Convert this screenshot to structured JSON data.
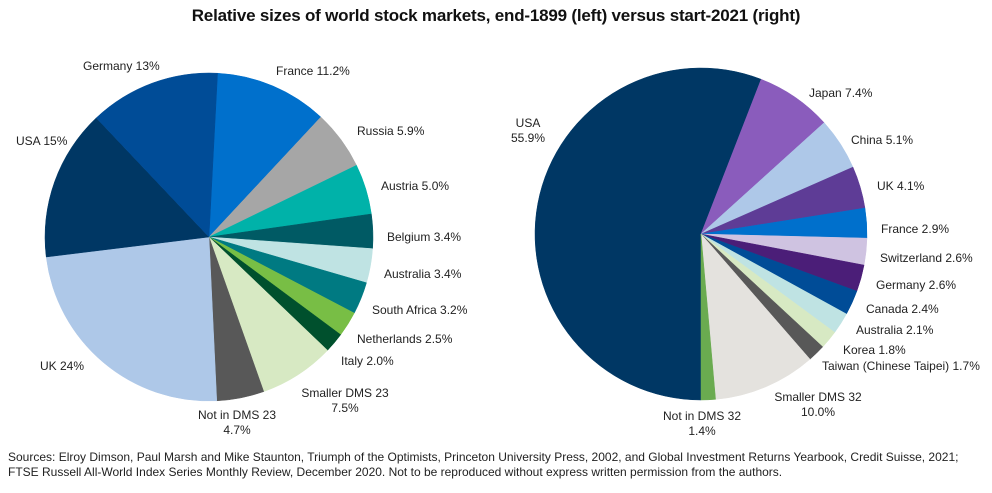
{
  "chart_data": [
    {
      "type": "pie",
      "title": "Relative sizes of world stock markets, end-1899 (left) versus start-2021 (right)",
      "name": "end-1899",
      "position": "left",
      "start_angle_deg_from_top": 3,
      "direction": "clockwise",
      "slices": [
        {
          "label": "France",
          "value": 11.2,
          "text": [
            "France 11.2%"
          ],
          "color": "#0070cc"
        },
        {
          "label": "Russia",
          "value": 5.9,
          "text": [
            "Russia 5.9%"
          ],
          "color": "#a6a6a6"
        },
        {
          "label": "Austria",
          "value": 5.0,
          "text": [
            "Austria 5.0%"
          ],
          "color": "#00b2a9"
        },
        {
          "label": "Belgium",
          "value": 3.4,
          "text": [
            "Belgium 3.4%"
          ],
          "color": "#005a64"
        },
        {
          "label": "Australia",
          "value": 3.4,
          "text": [
            "Australia 3.4%"
          ],
          "color": "#bfe3e3"
        },
        {
          "label": "South Africa",
          "value": 3.2,
          "text": [
            "South Africa 3.2%"
          ],
          "color": "#007a82"
        },
        {
          "label": "Netherlands",
          "value": 2.5,
          "text": [
            "Netherlands 2.5%"
          ],
          "color": "#78be45"
        },
        {
          "label": "Italy",
          "value": 2.0,
          "text": [
            "Italy 2.0%"
          ],
          "color": "#00502d"
        },
        {
          "label": "Smaller DMS 23",
          "value": 7.5,
          "text": [
            "Smaller DMS 23",
            "7.5%"
          ],
          "color": "#d7e9c3"
        },
        {
          "label": "Not in DMS 23",
          "value": 4.7,
          "text": [
            "Not in DMS 23",
            "4.7%"
          ],
          "color": "#585858"
        },
        {
          "label": "UK",
          "value": 24,
          "text": [
            "UK 24%"
          ],
          "color": "#aec8e8"
        },
        {
          "label": "USA",
          "value": 15,
          "text": [
            "USA 15%"
          ],
          "color": "#003764"
        },
        {
          "label": "Germany",
          "value": 13,
          "text": [
            "Germany 13%"
          ],
          "color": "#004c97"
        }
      ]
    },
    {
      "type": "pie",
      "name": "start-2021",
      "position": "right",
      "start_angle_deg_from_top": 180,
      "direction": "clockwise",
      "slices": [
        {
          "label": "USA",
          "value": 55.9,
          "text": [
            "USA",
            "55.9%"
          ],
          "color": "#003764"
        },
        {
          "label": "Japan",
          "value": 7.4,
          "text": [
            "Japan 7.4%"
          ],
          "color": "#8a5cbc"
        },
        {
          "label": "China",
          "value": 5.1,
          "text": [
            "China 5.1%"
          ],
          "color": "#aec8e8"
        },
        {
          "label": "UK",
          "value": 4.1,
          "text": [
            "UK 4.1%"
          ],
          "color": "#5e3c96"
        },
        {
          "label": "France",
          "value": 2.9,
          "text": [
            "France 2.9%"
          ],
          "color": "#0070cc"
        },
        {
          "label": "Switzerland",
          "value": 2.6,
          "text": [
            "Switzerland 2.6%"
          ],
          "color": "#cfc3e1"
        },
        {
          "label": "Germany",
          "value": 2.6,
          "text": [
            "Germany 2.6%"
          ],
          "color": "#4b1e78"
        },
        {
          "label": "Canada",
          "value": 2.4,
          "text": [
            "Canada 2.4%"
          ],
          "color": "#004c97"
        },
        {
          "label": "Australia",
          "value": 2.1,
          "text": [
            "Australia 2.1%"
          ],
          "color": "#bfe3e3"
        },
        {
          "label": "Korea",
          "value": 1.8,
          "text": [
            "Korea 1.8%"
          ],
          "color": "#d7e9c3"
        },
        {
          "label": "Taiwan (Chinese Taipei)",
          "value": 1.7,
          "text": [
            "Taiwan (Chinese Taipei) 1.7%"
          ],
          "color": "#585858"
        },
        {
          "label": "Smaller DMS 32",
          "value": 10.0,
          "text": [
            "Smaller DMS 32",
            "10.0%"
          ],
          "color": "#e4e2de"
        },
        {
          "label": "Not in DMS 32",
          "value": 1.4,
          "text": [
            "Not in DMS 32",
            "1.4%"
          ],
          "color": "#6aab50"
        }
      ]
    }
  ],
  "title": "Relative sizes of world stock markets, end-1899 (left) versus start-2021 (right)",
  "source_text": "Sources: Elroy Dimson, Paul Marsh and Mike Staunton, Triumph of the Optimists, Princeton University Press, 2002, and Global Investment Returns Yearbook, Credit Suisse, 2021; FTSE Russell All-World Index Series Monthly Review, December 2020. Not to be reproduced without express written permission from the authors."
}
